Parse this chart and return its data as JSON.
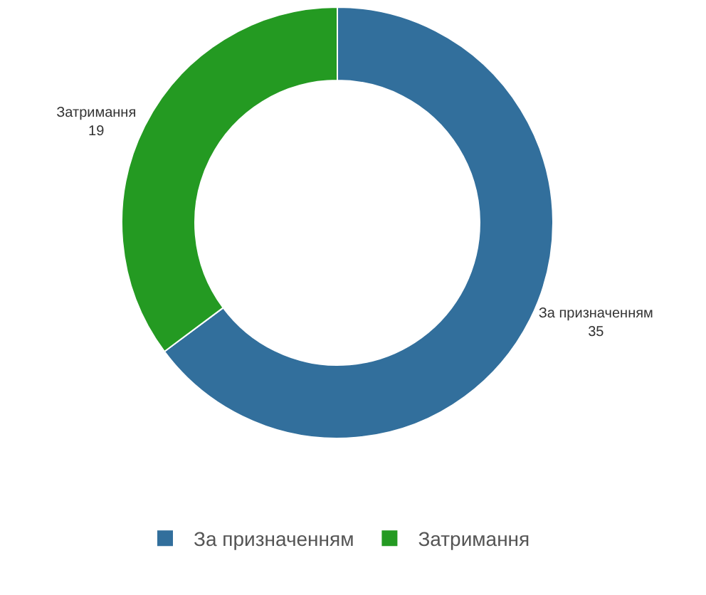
{
  "chart_data": {
    "type": "donut",
    "categories": [
      "За призначенням",
      "Затримання"
    ],
    "values": [
      35,
      19
    ],
    "colors": [
      "#326f9c",
      "#249a22"
    ],
    "data_labels": true,
    "legend": "bottom"
  }
}
